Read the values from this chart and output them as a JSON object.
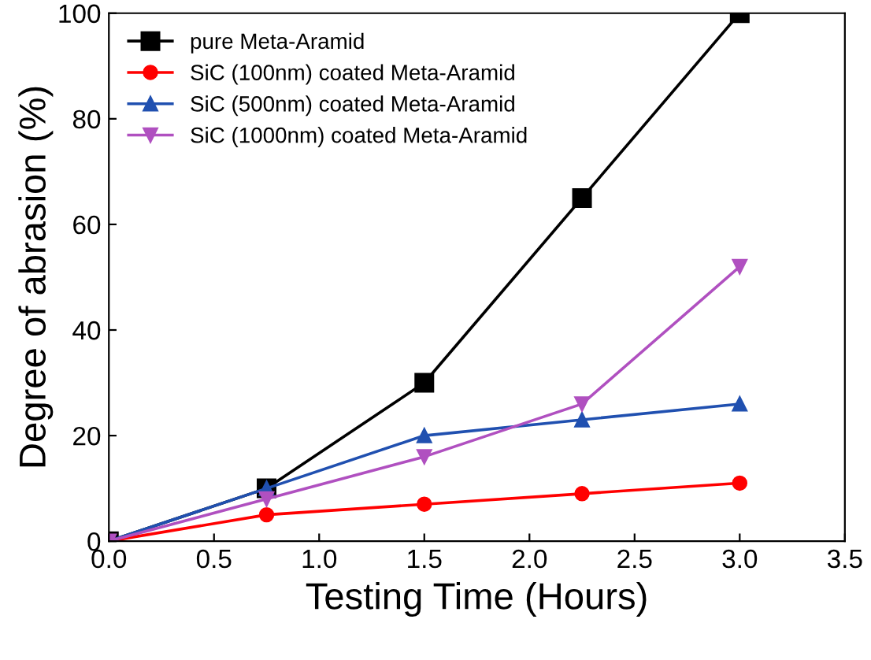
{
  "chart_data": {
    "type": "line",
    "xlabel": "Testing Time (Hours)",
    "ylabel": "Degree of abrasion (%)",
    "x": [
      0,
      0.75,
      1.5,
      2.25,
      3
    ],
    "xlim": [
      0,
      3.5
    ],
    "xticks": [
      {
        "value": 0,
        "label": "0.0"
      },
      {
        "value": 0.5,
        "label": "0.5"
      },
      {
        "value": 1,
        "label": "1.0"
      },
      {
        "value": 1.5,
        "label": "1.5"
      },
      {
        "value": 2,
        "label": "2.0"
      },
      {
        "value": 2.5,
        "label": "2.5"
      },
      {
        "value": 3,
        "label": "3.0"
      },
      {
        "value": 3.5,
        "label": "3.5"
      }
    ],
    "ylim": [
      0,
      100
    ],
    "yticks": [
      0,
      20,
      40,
      60,
      80,
      100
    ],
    "legend": "top left",
    "grid": false,
    "line_style": "solid",
    "series": [
      {
        "name": "pure Meta-Aramid",
        "color": "#000000",
        "marker": "square",
        "values": [
          0,
          10,
          30,
          65,
          100
        ]
      },
      {
        "name": "SiC (100nm) coated Meta-Aramid",
        "color": "#ff0000",
        "marker": "circle",
        "values": [
          0,
          5,
          7,
          9,
          11
        ]
      },
      {
        "name": "SiC (500nm) coated Meta-Aramid",
        "color": "#2050b0",
        "marker": "triangle",
        "values": [
          0,
          10,
          20,
          23,
          26
        ]
      },
      {
        "name": "SiC (1000nm) coated Meta-Aramid",
        "color": "#b050c0",
        "marker": "triangle_down",
        "values": [
          0,
          8,
          16,
          26,
          52
        ]
      }
    ]
  }
}
